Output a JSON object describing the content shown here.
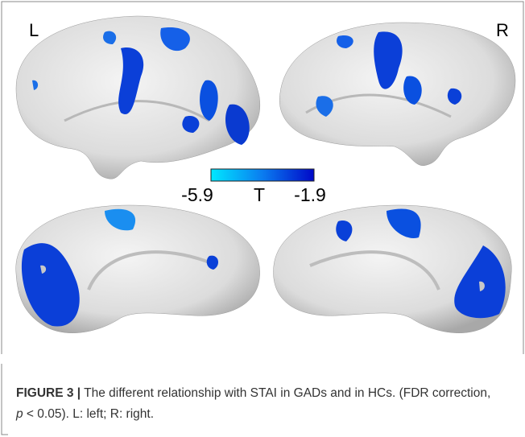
{
  "panel_labels": {
    "left": "L",
    "right": "R"
  },
  "colorbar": {
    "min_label": "-5.9",
    "title": "T",
    "max_label": "-1.9"
  },
  "caption": {
    "label": "FIGURE 3 |",
    "text_before": " The different relationship with STAI in GADs and in HCs. (FDR correction, ",
    "italic": "p",
    "text_after": " < 0.05). L: left; R: right."
  }
}
